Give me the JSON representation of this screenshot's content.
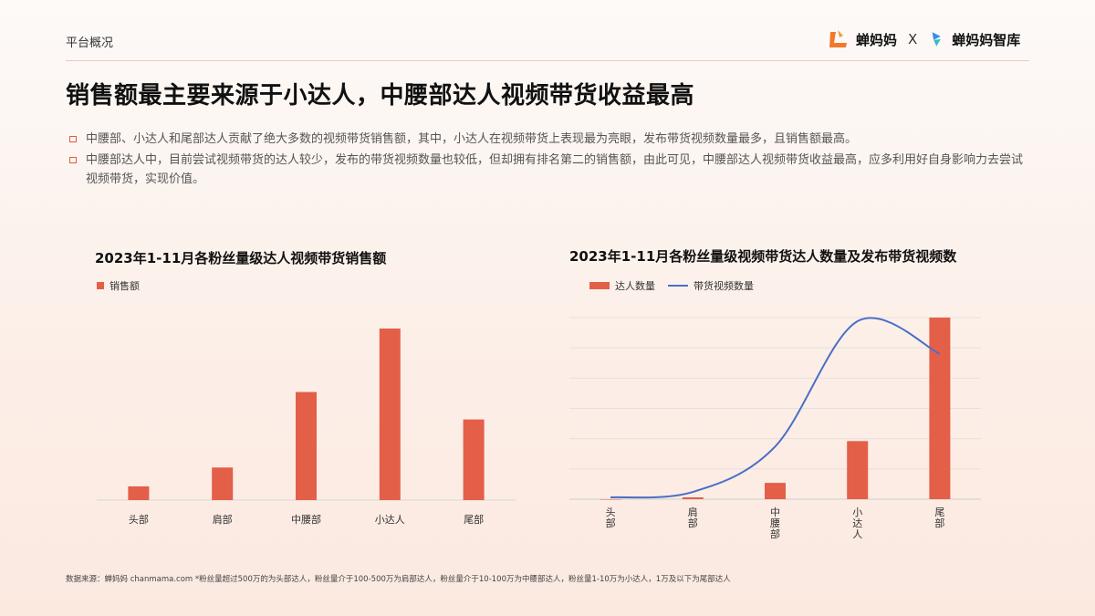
{
  "header": {
    "section_label": "平台概况",
    "logo_brand": "蝉妈妈",
    "logo_separator": "X",
    "logo_partner": "蝉妈妈智库"
  },
  "title": "销售额最主要来源于小达人，中腰部达人视频带货收益最高",
  "bullets": [
    "中腰部、小达人和尾部达人贡献了绝大多数的视频带货销售额，其中，小达人在视频带货上表现最为亮眼，发布带货视频数量最多，且销售额最高。",
    "中腰部达人中，目前尝试视频带货的达人较少，发布的带货视频数量也较低，但却拥有排名第二的销售额，由此可见，中腰部达人视频带货收益最高，应多利用好自身影响力去尝试视频带货，实现价值。"
  ],
  "colors": {
    "accent": "#e35f48",
    "line": "#4a6fc6"
  },
  "chart_data": [
    {
      "type": "bar",
      "title": "2023年1-11月各粉丝量级达人视频带货销售额",
      "legend": [
        "销售额"
      ],
      "categories": [
        "头部",
        "肩部",
        "中腰部",
        "小达人",
        "尾部"
      ],
      "series": [
        {
          "name": "销售额",
          "values": [
            8,
            19,
            63,
            100,
            47
          ]
        }
      ],
      "ylim": [
        0,
        100
      ],
      "grid": false
    },
    {
      "type": "bar",
      "title": "2023年1-11月各粉丝量级视频带货达人数量及发布带货视频数",
      "legend": [
        "达人数量",
        "带货视频数量"
      ],
      "categories": [
        "头部",
        "肩部",
        "中腰部",
        "小达人",
        "尾部"
      ],
      "series": [
        {
          "name": "达人数量",
          "kind": "bar",
          "values": [
            0,
            1,
            9,
            32,
            100
          ]
        },
        {
          "name": "带货视频数量",
          "kind": "line",
          "values": [
            1,
            4,
            29,
            98,
            80
          ]
        }
      ],
      "ylim": [
        0,
        100
      ],
      "grid": true
    }
  ],
  "footer": "数据来源：蝉妈妈 chanmama.com  *粉丝量超过500万的为头部达人，粉丝量介于100-500万为肩部达人，粉丝量介于10-100万为中腰部达人，粉丝量1-10万为小达人，1万及以下为尾部达人"
}
